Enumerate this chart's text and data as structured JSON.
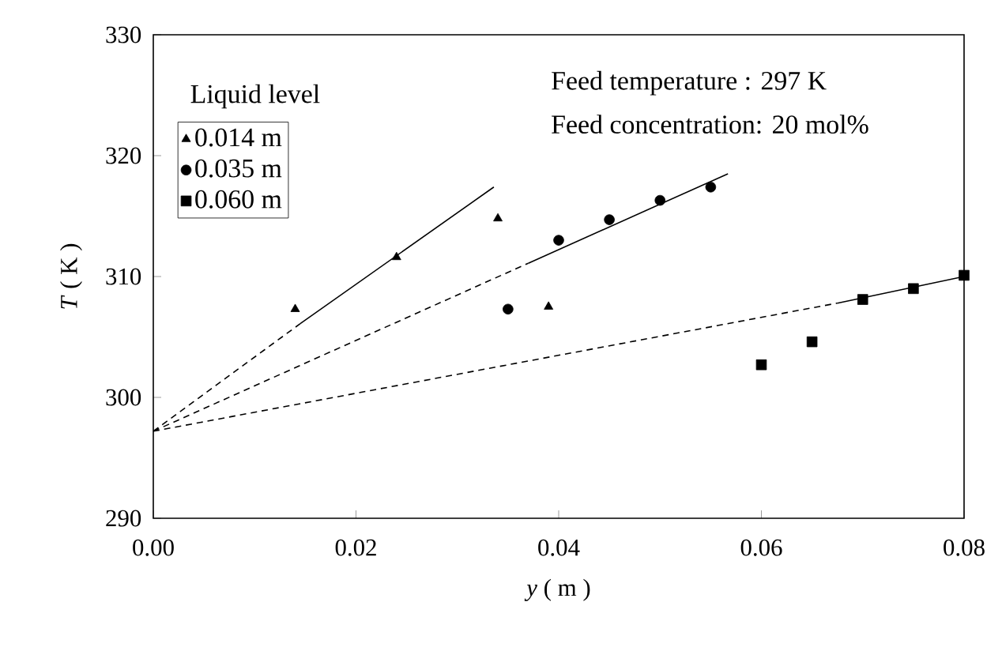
{
  "chart_data": {
    "type": "scatter",
    "xlabel": "*y* ( m )",
    "ylabel": "*T* ( K )",
    "legend_title": "Liquid level",
    "legend": "top left",
    "xlim": [
      0,
      0.08
    ],
    "ylim": [
      290,
      330
    ],
    "xticks": [
      {
        "value": 0,
        "label": "0.00"
      },
      0.02,
      0.04,
      0.06,
      0.08
    ],
    "yticks": [
      290,
      300,
      310,
      320,
      330
    ],
    "grid": false,
    "annotations": [
      "Feed temperature : 297 K",
      "Feed concentration: 20 mol%"
    ],
    "series": [
      {
        "name": "0.014 m",
        "color": "#000000",
        "marker": "triangle",
        "x": [
          0.014,
          0.024,
          0.034,
          0.039
        ],
        "values": [
          307.3,
          311.6,
          314.8,
          307.5
        ]
      },
      {
        "name": "0.035 m",
        "color": "#000000",
        "marker": "circle",
        "x": [
          0.035,
          0.04,
          0.045,
          0.05,
          0.055
        ],
        "values": [
          307.3,
          313.0,
          314.7,
          316.3,
          317.4
        ]
      },
      {
        "name": "0.060 m",
        "color": "#000000",
        "marker": "square",
        "x": [
          0.06,
          0.065,
          0.07,
          0.075,
          0.08
        ],
        "values": [
          302.7,
          304.6,
          308.1,
          309.0,
          310.1
        ]
      },
      {
        "type": "line",
        "color": "#000000",
        "line_style": "dashed",
        "x": [
          0,
          0.0145
        ],
        "values": [
          297.2,
          306.1
        ]
      },
      {
        "type": "line",
        "color": "#000000",
        "line_style": "solid",
        "x": [
          0.0145,
          0.0336
        ],
        "values": [
          306.1,
          317.4
        ]
      },
      {
        "type": "line",
        "color": "#000000",
        "line_style": "dashed",
        "x": [
          0,
          0.037
        ],
        "values": [
          297.2,
          311.1
        ]
      },
      {
        "type": "line",
        "color": "#000000",
        "line_style": "solid",
        "x": [
          0.037,
          0.0567
        ],
        "values": [
          311.1,
          318.5
        ]
      },
      {
        "type": "line",
        "color": "#000000",
        "line_style": "dashed",
        "x": [
          0,
          0.0675
        ],
        "values": [
          297.2,
          307.8
        ]
      },
      {
        "type": "line",
        "color": "#000000",
        "line_style": "solid",
        "x": [
          0.0675,
          0.08
        ],
        "values": [
          307.8,
          310.0
        ]
      }
    ]
  }
}
